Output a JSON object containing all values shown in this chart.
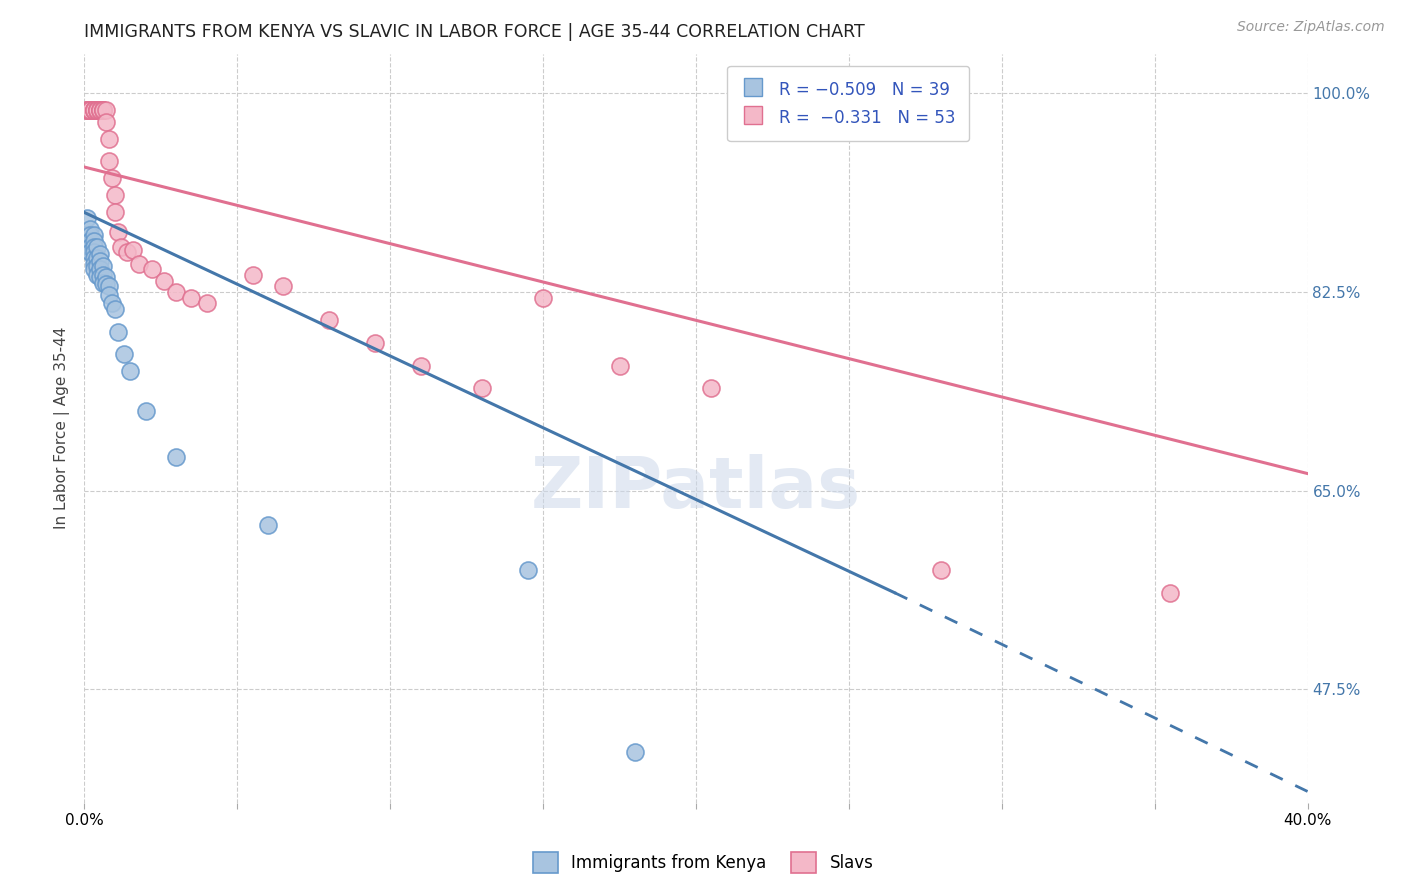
{
  "title": "IMMIGRANTS FROM KENYA VS SLAVIC IN LABOR FORCE | AGE 35-44 CORRELATION CHART",
  "source": "Source: ZipAtlas.com",
  "ylabel": "In Labor Force | Age 35-44",
  "xlim": [
    0.0,
    0.4
  ],
  "ylim": [
    0.375,
    1.035
  ],
  "ytick_right": [
    1.0,
    0.825,
    0.65,
    0.475
  ],
  "ytick_right_labels": [
    "100.0%",
    "82.5%",
    "65.0%",
    "47.5%"
  ],
  "kenya_color": "#a8c4e0",
  "kenya_edge_color": "#6699cc",
  "slavs_color": "#f4b8c8",
  "slavs_edge_color": "#e07090",
  "kenya_line_color": "#4477aa",
  "slavs_line_color": "#e07090",
  "background_color": "#ffffff",
  "grid_color": "#cccccc",
  "kenya_line_x0": 0.0,
  "kenya_line_y0": 0.895,
  "kenya_line_x1": 0.265,
  "kenya_line_y1": 0.56,
  "kenya_line_dash_x1": 0.4,
  "kenya_line_dash_y1": 0.385,
  "slavs_line_x0": 0.0,
  "slavs_line_y0": 0.935,
  "slavs_line_x1": 0.4,
  "slavs_line_y1": 0.665,
  "kenya_x": [
    0.001,
    0.001,
    0.002,
    0.002,
    0.002,
    0.002,
    0.002,
    0.003,
    0.003,
    0.003,
    0.003,
    0.003,
    0.003,
    0.003,
    0.004,
    0.004,
    0.004,
    0.004,
    0.005,
    0.005,
    0.005,
    0.005,
    0.006,
    0.006,
    0.006,
    0.007,
    0.007,
    0.008,
    0.008,
    0.009,
    0.01,
    0.011,
    0.013,
    0.015,
    0.02,
    0.03,
    0.06,
    0.145,
    0.18
  ],
  "kenya_y": [
    0.89,
    0.875,
    0.88,
    0.875,
    0.87,
    0.865,
    0.86,
    0.875,
    0.87,
    0.865,
    0.86,
    0.855,
    0.85,
    0.845,
    0.865,
    0.855,
    0.848,
    0.84,
    0.858,
    0.852,
    0.845,
    0.838,
    0.848,
    0.84,
    0.833,
    0.838,
    0.832,
    0.83,
    0.822,
    0.815,
    0.81,
    0.79,
    0.77,
    0.755,
    0.72,
    0.68,
    0.62,
    0.58,
    0.42
  ],
  "slavs_x": [
    0.001,
    0.001,
    0.001,
    0.001,
    0.002,
    0.002,
    0.002,
    0.002,
    0.002,
    0.002,
    0.003,
    0.003,
    0.003,
    0.003,
    0.003,
    0.004,
    0.004,
    0.004,
    0.004,
    0.005,
    0.005,
    0.005,
    0.006,
    0.006,
    0.006,
    0.007,
    0.007,
    0.008,
    0.008,
    0.009,
    0.01,
    0.01,
    0.011,
    0.012,
    0.014,
    0.016,
    0.018,
    0.022,
    0.026,
    0.03,
    0.035,
    0.04,
    0.055,
    0.065,
    0.08,
    0.095,
    0.11,
    0.13,
    0.15,
    0.175,
    0.205,
    0.28,
    0.355
  ],
  "slavs_y": [
    0.985,
    0.985,
    0.985,
    0.985,
    0.985,
    0.985,
    0.985,
    0.985,
    0.985,
    0.985,
    0.985,
    0.985,
    0.985,
    0.985,
    0.985,
    0.985,
    0.985,
    0.985,
    0.985,
    0.985,
    0.985,
    0.985,
    0.985,
    0.985,
    0.985,
    0.985,
    0.975,
    0.96,
    0.94,
    0.925,
    0.91,
    0.895,
    0.878,
    0.865,
    0.86,
    0.862,
    0.85,
    0.845,
    0.835,
    0.825,
    0.82,
    0.815,
    0.84,
    0.83,
    0.8,
    0.78,
    0.76,
    0.74,
    0.82,
    0.76,
    0.74,
    0.58,
    0.56
  ]
}
